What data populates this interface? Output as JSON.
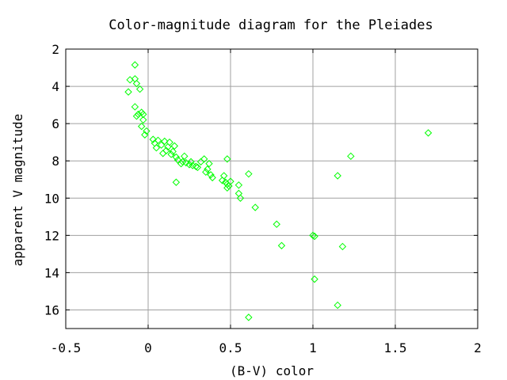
{
  "chart_data": {
    "type": "scatter",
    "title": "Color-magnitude diagram for the Pleiades",
    "xlabel": "(B-V) color",
    "ylabel": "apparent V magnitude",
    "xlim": [
      -0.5,
      2
    ],
    "ylim": [
      2,
      17
    ],
    "y_inverted": true,
    "grid": true,
    "marker": "diamond",
    "colors": {
      "marker": "#00ff00",
      "grid": "#a0a0a0",
      "frame": "#000000"
    },
    "xticks": [
      {
        "value": -0.5,
        "label": "-0.5"
      },
      {
        "value": 0,
        "label": "0"
      },
      {
        "value": 0.5,
        "label": "0.5"
      },
      {
        "value": 1,
        "label": "1"
      },
      {
        "value": 1.5,
        "label": "1.5"
      },
      {
        "value": 2,
        "label": "2"
      }
    ],
    "yticks": [
      {
        "value": 2,
        "label": "2"
      },
      {
        "value": 4,
        "label": "4"
      },
      {
        "value": 6,
        "label": "6"
      },
      {
        "value": 8,
        "label": "8"
      },
      {
        "value": 10,
        "label": "10"
      },
      {
        "value": 12,
        "label": "12"
      },
      {
        "value": 14,
        "label": "14"
      },
      {
        "value": 16,
        "label": "16"
      }
    ],
    "points": [
      {
        "x": -0.11,
        "y": 3.65
      },
      {
        "x": -0.12,
        "y": 4.3
      },
      {
        "x": -0.08,
        "y": 2.85
      },
      {
        "x": -0.08,
        "y": 3.6
      },
      {
        "x": -0.07,
        "y": 3.85
      },
      {
        "x": -0.05,
        "y": 4.15
      },
      {
        "x": -0.08,
        "y": 5.1
      },
      {
        "x": -0.07,
        "y": 5.6
      },
      {
        "x": -0.06,
        "y": 5.5
      },
      {
        "x": -0.04,
        "y": 5.4
      },
      {
        "x": -0.03,
        "y": 5.8
      },
      {
        "x": -0.04,
        "y": 6.15
      },
      {
        "x": -0.03,
        "y": 5.5
      },
      {
        "x": -0.02,
        "y": 6.6
      },
      {
        "x": -0.01,
        "y": 6.4
      },
      {
        "x": 0.03,
        "y": 6.85
      },
      {
        "x": 0.04,
        "y": 7.05
      },
      {
        "x": 0.05,
        "y": 7.3
      },
      {
        "x": 0.06,
        "y": 6.9
      },
      {
        "x": 0.08,
        "y": 7.15
      },
      {
        "x": 0.09,
        "y": 7.6
      },
      {
        "x": 0.1,
        "y": 6.95
      },
      {
        "x": 0.11,
        "y": 7.45
      },
      {
        "x": 0.12,
        "y": 7.25
      },
      {
        "x": 0.13,
        "y": 7.0
      },
      {
        "x": 0.14,
        "y": 7.65
      },
      {
        "x": 0.15,
        "y": 7.5
      },
      {
        "x": 0.16,
        "y": 7.2
      },
      {
        "x": 0.17,
        "y": 7.8
      },
      {
        "x": 0.17,
        "y": 9.15
      },
      {
        "x": 0.18,
        "y": 7.95
      },
      {
        "x": 0.2,
        "y": 8.15
      },
      {
        "x": 0.21,
        "y": 8.05
      },
      {
        "x": 0.22,
        "y": 7.75
      },
      {
        "x": 0.23,
        "y": 8.1
      },
      {
        "x": 0.25,
        "y": 8.2
      },
      {
        "x": 0.26,
        "y": 8.05
      },
      {
        "x": 0.27,
        "y": 8.25
      },
      {
        "x": 0.29,
        "y": 8.3
      },
      {
        "x": 0.3,
        "y": 8.35
      },
      {
        "x": 0.32,
        "y": 8.05
      },
      {
        "x": 0.34,
        "y": 7.9
      },
      {
        "x": 0.35,
        "y": 8.6
      },
      {
        "x": 0.36,
        "y": 8.45
      },
      {
        "x": 0.37,
        "y": 8.15
      },
      {
        "x": 0.38,
        "y": 8.75
      },
      {
        "x": 0.39,
        "y": 8.9
      },
      {
        "x": 0.45,
        "y": 9.05
      },
      {
        "x": 0.46,
        "y": 8.8
      },
      {
        "x": 0.47,
        "y": 9.15
      },
      {
        "x": 0.48,
        "y": 9.25
      },
      {
        "x": 0.48,
        "y": 9.45
      },
      {
        "x": 0.49,
        "y": 9.35
      },
      {
        "x": 0.5,
        "y": 9.1
      },
      {
        "x": 0.48,
        "y": 7.9
      },
      {
        "x": 0.55,
        "y": 9.3
      },
      {
        "x": 0.55,
        "y": 9.75
      },
      {
        "x": 0.56,
        "y": 10.0
      },
      {
        "x": 0.61,
        "y": 8.7
      },
      {
        "x": 0.65,
        "y": 10.5
      },
      {
        "x": 0.78,
        "y": 11.4
      },
      {
        "x": 0.81,
        "y": 12.55
      },
      {
        "x": 1.0,
        "y": 12.0
      },
      {
        "x": 1.01,
        "y": 12.05
      },
      {
        "x": 1.01,
        "y": 14.35
      },
      {
        "x": 1.15,
        "y": 8.8
      },
      {
        "x": 1.18,
        "y": 12.6
      },
      {
        "x": 1.15,
        "y": 15.75
      },
      {
        "x": 1.23,
        "y": 7.75
      },
      {
        "x": 0.61,
        "y": 16.4
      },
      {
        "x": 1.7,
        "y": 6.5
      }
    ]
  }
}
